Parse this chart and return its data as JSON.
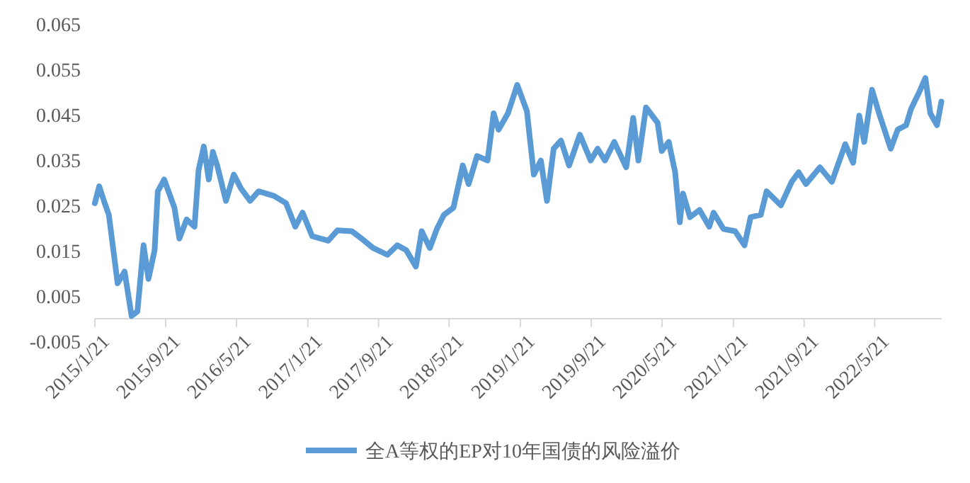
{
  "chart_data": {
    "type": "line",
    "legend": "bottom",
    "grid": false,
    "marker": "none",
    "line_style": "solid",
    "xlim": [
      "2015-01-21",
      "2023-01-06"
    ],
    "ylim": [
      -0.005,
      0.065
    ],
    "yticks": [
      -0.005,
      0.005,
      0.015,
      0.025,
      0.035,
      0.045,
      0.055,
      0.065
    ],
    "xticks": [
      {
        "value": "2015-01-21",
        "label": "2015/1/21"
      },
      {
        "value": "2015-09-21",
        "label": "2015/9/21"
      },
      {
        "value": "2016-05-21",
        "label": "2016/5/21"
      },
      {
        "value": "2017-01-21",
        "label": "2017/1/21"
      },
      {
        "value": "2017-09-21",
        "label": "2017/9/21"
      },
      {
        "value": "2018-05-21",
        "label": "2018/5/21"
      },
      {
        "value": "2019-01-21",
        "label": "2019/1/21"
      },
      {
        "value": "2019-09-21",
        "label": "2019/9/21"
      },
      {
        "value": "2020-05-21",
        "label": "2020/5/21"
      },
      {
        "value": "2021-01-21",
        "label": "2021/1/21"
      },
      {
        "value": "2021-09-21",
        "label": "2021/9/21"
      },
      {
        "value": "2022-05-21",
        "label": "2022/5/21"
      }
    ],
    "series": [
      {
        "name": "全A等权的EP对10年国债的风险溢价",
        "color": "#5b9bd5",
        "x": [
          "2015-01-21",
          "2015-02-05",
          "2015-02-21",
          "2015-03-10",
          "2015-04-09",
          "2015-05-03",
          "2015-05-27",
          "2015-06-16",
          "2015-07-07",
          "2015-07-24",
          "2015-08-14",
          "2015-08-25",
          "2015-09-16",
          "2015-10-21",
          "2015-11-07",
          "2015-12-02",
          "2015-12-29",
          "2016-01-12",
          "2016-01-30",
          "2016-02-16",
          "2016-03-01",
          "2016-03-16",
          "2016-04-15",
          "2016-05-12",
          "2016-06-06",
          "2016-07-07",
          "2016-08-05",
          "2016-09-27",
          "2016-11-07",
          "2016-12-09",
          "2017-01-03",
          "2017-02-05",
          "2017-04-01",
          "2017-05-03",
          "2017-06-21",
          "2017-07-24",
          "2017-09-02",
          "2017-10-21",
          "2017-11-24",
          "2017-12-25",
          "2018-01-27",
          "2018-02-16",
          "2018-03-16",
          "2018-04-09",
          "2018-05-03",
          "2018-06-05",
          "2018-07-07",
          "2018-07-27",
          "2018-08-25",
          "2018-09-30",
          "2018-10-21",
          "2018-11-07",
          "2018-12-09",
          "2019-01-10",
          "2019-02-12",
          "2019-03-08",
          "2019-04-01",
          "2019-04-22",
          "2019-05-15",
          "2019-06-09",
          "2019-07-07",
          "2019-08-13",
          "2019-09-19",
          "2019-10-13",
          "2019-11-07",
          "2019-12-09",
          "2020-01-19",
          "2020-02-12",
          "2020-03-01",
          "2020-03-27",
          "2020-05-06",
          "2020-05-20",
          "2020-06-13",
          "2020-07-05",
          "2020-07-21",
          "2020-08-01",
          "2020-08-25",
          "2020-09-27",
          "2020-10-30",
          "2020-11-14",
          "2020-12-18",
          "2021-01-27",
          "2021-02-28",
          "2021-03-21",
          "2021-04-25",
          "2021-05-15",
          "2021-07-03",
          "2021-08-09",
          "2021-09-02",
          "2021-09-27",
          "2021-11-14",
          "2021-12-25",
          "2022-02-09",
          "2022-03-08",
          "2022-03-29",
          "2022-04-15",
          "2022-05-12",
          "2022-06-05",
          "2022-07-15",
          "2022-08-08",
          "2022-09-06",
          "2022-09-23",
          "2022-10-21",
          "2022-11-11",
          "2022-11-28",
          "2022-12-21",
          "2023-01-05"
        ],
        "values": [
          0.0255,
          0.0292,
          0.026,
          0.0229,
          0.0078,
          0.0104,
          0.0006,
          0.0016,
          0.0162,
          0.0088,
          0.0151,
          0.0281,
          0.0307,
          0.0245,
          0.0177,
          0.0219,
          0.0203,
          0.0328,
          0.038,
          0.0307,
          0.0368,
          0.0338,
          0.026,
          0.0318,
          0.0287,
          0.026,
          0.0281,
          0.0271,
          0.0255,
          0.0203,
          0.0234,
          0.0182,
          0.0172,
          0.0195,
          0.0193,
          0.0177,
          0.0156,
          0.0141,
          0.0162,
          0.0151,
          0.0115,
          0.0193,
          0.0156,
          0.0198,
          0.0229,
          0.0245,
          0.0338,
          0.0297,
          0.0359,
          0.0349,
          0.0453,
          0.0417,
          0.0453,
          0.0516,
          0.0458,
          0.0318,
          0.0349,
          0.026,
          0.0375,
          0.0393,
          0.0338,
          0.0406,
          0.0349,
          0.0375,
          0.0349,
          0.039,
          0.0334,
          0.0443,
          0.0349,
          0.0466,
          0.0432,
          0.037,
          0.039,
          0.0323,
          0.0213,
          0.0276,
          0.0224,
          0.024,
          0.0203,
          0.0234,
          0.0198,
          0.0193,
          0.0162,
          0.0224,
          0.0229,
          0.0281,
          0.025,
          0.0302,
          0.0323,
          0.0297,
          0.0334,
          0.0302,
          0.0385,
          0.0344,
          0.0448,
          0.039,
          0.0505,
          0.0453,
          0.0375,
          0.0417,
          0.0427,
          0.0463,
          0.05,
          0.0531,
          0.0453,
          0.0427,
          0.0479
        ]
      }
    ]
  }
}
